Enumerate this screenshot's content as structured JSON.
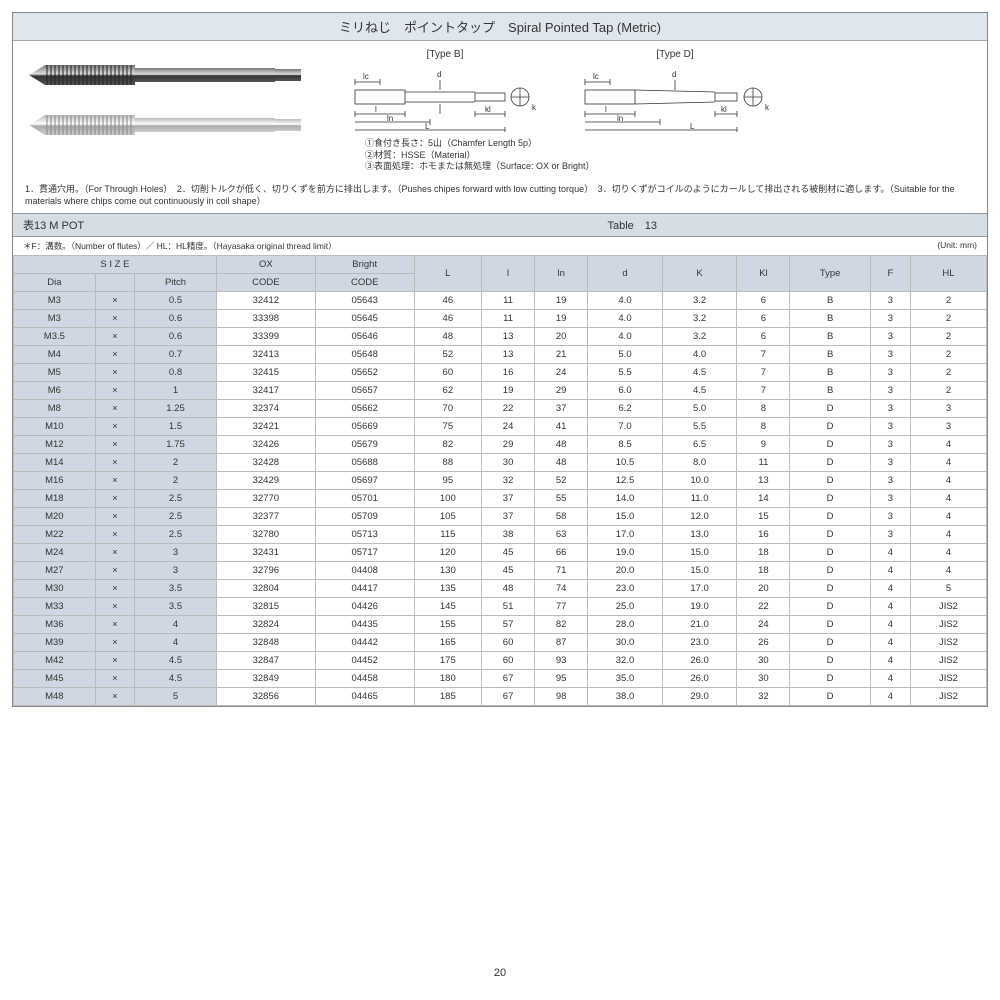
{
  "title": "ミリねじ　ポイントタップ　Spiral Pointed Tap (Metric)",
  "diag_labels": {
    "b": "[Type B]",
    "d": "[Type D]"
  },
  "diag_dims": {
    "lc": "lc",
    "d": "d",
    "k": "k",
    "l": "l",
    "ln": "ln",
    "L": "L",
    "kl": "kl"
  },
  "notes_under_diag": [
    "①食付き長さ：5山（Chamfer Length 5p）",
    "②材質：HSSE（Material）",
    "③表面処理：ホモまたは無処理（Surface: OX or Bright）"
  ],
  "description": "1．貫通穴用。（For Through Holes）　2．切削トルクが低く、切りくずを前方に排出します。（Pushes chipes forward with low cutting torque）　3．切りくずがコイルのようにカールして排出される被削材に適します。（Suitable for the materials where chips come out continuously in coil shape）",
  "table_caption_left": "表13 M POT",
  "table_caption_right": "Table　13",
  "footnote_left": "＊F：溝数。（Number of flutes）／ HL：HL精度。（Hayasaka original thread limit）",
  "footnote_unit": "(Unit: mm)",
  "columns": {
    "size_group": "S I Z E",
    "dia": "Dia",
    "pitch": "Pitch",
    "times": "×",
    "ox": "OX",
    "ox_sub": "CODE",
    "bright": "Bright",
    "bright_sub": "CODE",
    "L": "L",
    "l": "l",
    "ln": "ln",
    "d": "d",
    "K": "K",
    "Kl": "Kl",
    "Type": "Type",
    "F": "F",
    "HL": "HL"
  },
  "rows": [
    {
      "dia": "M3",
      "pitch": "0.5",
      "ox": "32412",
      "bright": "05643",
      "L": "46",
      "l": "11",
      "ln": "19",
      "d": "4.0",
      "K": "3.2",
      "Kl": "6",
      "Type": "B",
      "F": "3",
      "HL": "2"
    },
    {
      "dia": "M3",
      "pitch": "0.6",
      "ox": "33398",
      "bright": "05645",
      "L": "46",
      "l": "11",
      "ln": "19",
      "d": "4.0",
      "K": "3.2",
      "Kl": "6",
      "Type": "B",
      "F": "3",
      "HL": "2"
    },
    {
      "dia": "M3.5",
      "pitch": "0.6",
      "ox": "33399",
      "bright": "05646",
      "L": "48",
      "l": "13",
      "ln": "20",
      "d": "4.0",
      "K": "3.2",
      "Kl": "6",
      "Type": "B",
      "F": "3",
      "HL": "2"
    },
    {
      "dia": "M4",
      "pitch": "0.7",
      "ox": "32413",
      "bright": "05648",
      "L": "52",
      "l": "13",
      "ln": "21",
      "d": "5.0",
      "K": "4.0",
      "Kl": "7",
      "Type": "B",
      "F": "3",
      "HL": "2"
    },
    {
      "dia": "M5",
      "pitch": "0.8",
      "ox": "32415",
      "bright": "05652",
      "L": "60",
      "l": "16",
      "ln": "24",
      "d": "5.5",
      "K": "4.5",
      "Kl": "7",
      "Type": "B",
      "F": "3",
      "HL": "2"
    },
    {
      "dia": "M6",
      "pitch": "1",
      "ox": "32417",
      "bright": "05657",
      "L": "62",
      "l": "19",
      "ln": "29",
      "d": "6.0",
      "K": "4.5",
      "Kl": "7",
      "Type": "B",
      "F": "3",
      "HL": "2"
    },
    {
      "dia": "M8",
      "pitch": "1.25",
      "ox": "32374",
      "bright": "05662",
      "L": "70",
      "l": "22",
      "ln": "37",
      "d": "6.2",
      "K": "5.0",
      "Kl": "8",
      "Type": "D",
      "F": "3",
      "HL": "3"
    },
    {
      "dia": "M10",
      "pitch": "1.5",
      "ox": "32421",
      "bright": "05669",
      "L": "75",
      "l": "24",
      "ln": "41",
      "d": "7.0",
      "K": "5.5",
      "Kl": "8",
      "Type": "D",
      "F": "3",
      "HL": "3"
    },
    {
      "dia": "M12",
      "pitch": "1.75",
      "ox": "32426",
      "bright": "05679",
      "L": "82",
      "l": "29",
      "ln": "48",
      "d": "8.5",
      "K": "6.5",
      "Kl": "9",
      "Type": "D",
      "F": "3",
      "HL": "4"
    },
    {
      "dia": "M14",
      "pitch": "2",
      "ox": "32428",
      "bright": "05688",
      "L": "88",
      "l": "30",
      "ln": "48",
      "d": "10.5",
      "K": "8.0",
      "Kl": "11",
      "Type": "D",
      "F": "3",
      "HL": "4"
    },
    {
      "dia": "M16",
      "pitch": "2",
      "ox": "32429",
      "bright": "05697",
      "L": "95",
      "l": "32",
      "ln": "52",
      "d": "12.5",
      "K": "10.0",
      "Kl": "13",
      "Type": "D",
      "F": "3",
      "HL": "4"
    },
    {
      "dia": "M18",
      "pitch": "2.5",
      "ox": "32770",
      "bright": "05701",
      "L": "100",
      "l": "37",
      "ln": "55",
      "d": "14.0",
      "K": "11.0",
      "Kl": "14",
      "Type": "D",
      "F": "3",
      "HL": "4"
    },
    {
      "dia": "M20",
      "pitch": "2.5",
      "ox": "32377",
      "bright": "05709",
      "L": "105",
      "l": "37",
      "ln": "58",
      "d": "15.0",
      "K": "12.0",
      "Kl": "15",
      "Type": "D",
      "F": "3",
      "HL": "4"
    },
    {
      "dia": "M22",
      "pitch": "2.5",
      "ox": "32780",
      "bright": "05713",
      "L": "115",
      "l": "38",
      "ln": "63",
      "d": "17.0",
      "K": "13.0",
      "Kl": "16",
      "Type": "D",
      "F": "3",
      "HL": "4"
    },
    {
      "dia": "M24",
      "pitch": "3",
      "ox": "32431",
      "bright": "05717",
      "L": "120",
      "l": "45",
      "ln": "66",
      "d": "19.0",
      "K": "15.0",
      "Kl": "18",
      "Type": "D",
      "F": "4",
      "HL": "4"
    },
    {
      "dia": "M27",
      "pitch": "3",
      "ox": "32796",
      "bright": "04408",
      "L": "130",
      "l": "45",
      "ln": "71",
      "d": "20.0",
      "K": "15.0",
      "Kl": "18",
      "Type": "D",
      "F": "4",
      "HL": "4"
    },
    {
      "dia": "M30",
      "pitch": "3.5",
      "ox": "32804",
      "bright": "04417",
      "L": "135",
      "l": "48",
      "ln": "74",
      "d": "23.0",
      "K": "17.0",
      "Kl": "20",
      "Type": "D",
      "F": "4",
      "HL": "5"
    },
    {
      "dia": "M33",
      "pitch": "3.5",
      "ox": "32815",
      "bright": "04426",
      "L": "145",
      "l": "51",
      "ln": "77",
      "d": "25.0",
      "K": "19.0",
      "Kl": "22",
      "Type": "D",
      "F": "4",
      "HL": "JIS2"
    },
    {
      "dia": "M36",
      "pitch": "4",
      "ox": "32824",
      "bright": "04435",
      "L": "155",
      "l": "57",
      "ln": "82",
      "d": "28.0",
      "K": "21.0",
      "Kl": "24",
      "Type": "D",
      "F": "4",
      "HL": "JIS2"
    },
    {
      "dia": "M39",
      "pitch": "4",
      "ox": "32848",
      "bright": "04442",
      "L": "165",
      "l": "60",
      "ln": "87",
      "d": "30.0",
      "K": "23.0",
      "Kl": "26",
      "Type": "D",
      "F": "4",
      "HL": "JIS2"
    },
    {
      "dia": "M42",
      "pitch": "4.5",
      "ox": "32847",
      "bright": "04452",
      "L": "175",
      "l": "60",
      "ln": "93",
      "d": "32.0",
      "K": "26.0",
      "Kl": "30",
      "Type": "D",
      "F": "4",
      "HL": "JIS2"
    },
    {
      "dia": "M45",
      "pitch": "4.5",
      "ox": "32849",
      "bright": "04458",
      "L": "180",
      "l": "67",
      "ln": "95",
      "d": "35.0",
      "K": "26.0",
      "Kl": "30",
      "Type": "D",
      "F": "4",
      "HL": "JIS2"
    },
    {
      "dia": "M48",
      "pitch": "5",
      "ox": "32856",
      "bright": "04465",
      "L": "185",
      "l": "67",
      "ln": "98",
      "d": "38.0",
      "K": "29.0",
      "Kl": "32",
      "Type": "D",
      "F": "4",
      "HL": "JIS2"
    }
  ],
  "page_number": "20",
  "colors": {
    "header_bg": "#dfe6ed",
    "th_bg": "#cfd8e2",
    "border": "#bbbbbb"
  }
}
